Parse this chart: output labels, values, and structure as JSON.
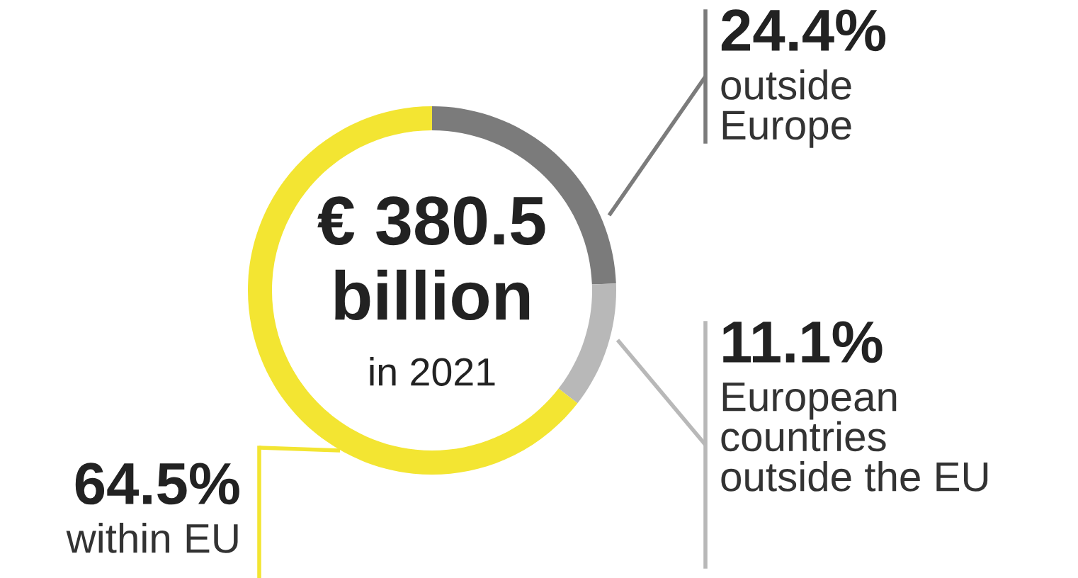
{
  "chart_data": {
    "type": "donut",
    "categories": [
      "outside\nEurope",
      "European\ncountries\noutside the EU",
      "within EU"
    ],
    "values": [
      24.4,
      11.1,
      64.5
    ],
    "colors": [
      "#7b7b7b",
      "#b8b8b8",
      "#f3e532"
    ],
    "value_labels": [
      "24.4%",
      "11.1%",
      "64.5%"
    ],
    "annotations": [
      "€ 380.5",
      "billion",
      "in 2021"
    ]
  }
}
